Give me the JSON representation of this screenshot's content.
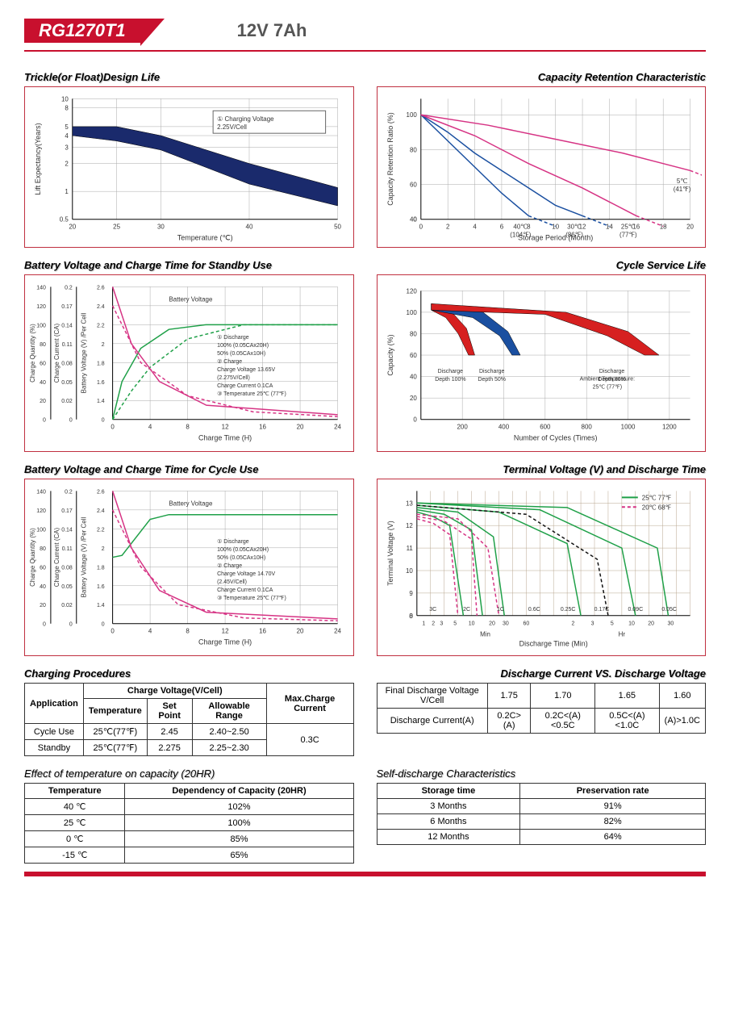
{
  "header": {
    "model": "RG1270T1",
    "spec": "12V  7Ah"
  },
  "colors": {
    "brand_red": "#c8102e",
    "chart_border": "#c03040",
    "grid": "#aaaaaa",
    "navy": "#1a2a6c",
    "magenta": "#d63384",
    "green": "#1fa048",
    "blue": "#1a4fa0",
    "red": "#d62020",
    "black": "#111111",
    "taupe_grid": "#b8a68f"
  },
  "chart_trickle": {
    "title": "Trickle(or Float)Design Life",
    "xlabel": "Temperature (℃)",
    "ylabel": "Lift Expectancy(Years)",
    "x_ticks": [
      20,
      25,
      30,
      40,
      50
    ],
    "y_ticks": [
      0.5,
      1,
      2,
      3,
      4,
      5,
      8,
      10
    ],
    "legend": "① Charging Voltage 2.25V/Cell",
    "band_upper": [
      [
        20,
        5
      ],
      [
        25,
        5
      ],
      [
        30,
        4
      ],
      [
        40,
        2
      ],
      [
        50,
        1.1
      ]
    ],
    "band_lower": [
      [
        20,
        4
      ],
      [
        25,
        3.5
      ],
      [
        30,
        2.8
      ],
      [
        40,
        1.2
      ],
      [
        50,
        0.7
      ]
    ],
    "band_color": "#1a2a6c"
  },
  "chart_capacity": {
    "title": "Capacity Retention Characteristic",
    "xlabel": "Storage Period (Month)",
    "ylabel": "Capacity Retention Ratio (%)",
    "x_ticks": [
      0,
      2,
      4,
      6,
      8,
      10,
      12,
      14,
      16,
      18,
      20
    ],
    "y_ticks": [
      0,
      40,
      60,
      80,
      100
    ],
    "series": [
      {
        "label": "40℃ (104℉)",
        "color": "#1a4fa0",
        "pts": [
          [
            0,
            100
          ],
          [
            2,
            85
          ],
          [
            4,
            70
          ],
          [
            6,
            55
          ],
          [
            8,
            42
          ]
        ],
        "dash": false
      },
      {
        "label": "30℃ (86℉)",
        "color": "#1a4fa0",
        "pts": [
          [
            0,
            100
          ],
          [
            2,
            90
          ],
          [
            4,
            78
          ],
          [
            6,
            68
          ],
          [
            8,
            58
          ],
          [
            10,
            48
          ],
          [
            12,
            42
          ]
        ],
        "dash": false
      },
      {
        "label": "25℃ (77℉)",
        "color": "#d63384",
        "pts": [
          [
            0,
            100
          ],
          [
            4,
            88
          ],
          [
            8,
            72
          ],
          [
            12,
            58
          ],
          [
            14,
            50
          ],
          [
            16,
            42
          ]
        ],
        "dash": false
      },
      {
        "label": "5℃ (41℉)",
        "color": "#d63384",
        "pts": [
          [
            0,
            100
          ],
          [
            5,
            94
          ],
          [
            10,
            86
          ],
          [
            15,
            78
          ],
          [
            18,
            72
          ],
          [
            20,
            68
          ]
        ],
        "dash": false
      }
    ]
  },
  "chart_standby": {
    "title": "Battery Voltage and Charge Time for Standby Use",
    "xlabel": "Charge Time (H)",
    "x_ticks": [
      0,
      4,
      8,
      12,
      16,
      20,
      24
    ],
    "y1_label": "Charge Quantity (%)",
    "y1_ticks": [
      0,
      20,
      40,
      60,
      80,
      100,
      120,
      140
    ],
    "y2_label": "Charge Current (CA)",
    "y2_ticks": [
      0,
      0.02,
      0.05,
      0.08,
      0.11,
      0.14,
      0.17,
      0.2
    ],
    "y3_label": "Battery Voltage (V) /Per Cell",
    "y3_ticks": [
      0,
      1.4,
      1.6,
      1.8,
      2.0,
      2.2,
      2.4,
      2.6
    ],
    "note_lines": [
      "① Discharge",
      "   100% (0.05CAx20H)",
      "   50% (0.05CAx10H)",
      "② Charge",
      "   Charge Voltage 13.65V",
      "   (2.275V/Cell)",
      "   Charge Current 0.1CA",
      "③ Temperature 25℃ (77℉)"
    ],
    "curves": [
      {
        "color": "#1fa048",
        "dash": false,
        "pts": [
          [
            0,
            0
          ],
          [
            1,
            40
          ],
          [
            3,
            75
          ],
          [
            6,
            95
          ],
          [
            10,
            100
          ],
          [
            24,
            100
          ]
        ],
        "label": "Battery Voltage"
      },
      {
        "color": "#1fa048",
        "dash": true,
        "pts": [
          [
            0,
            0
          ],
          [
            2,
            30
          ],
          [
            4,
            55
          ],
          [
            8,
            85
          ],
          [
            14,
            100
          ],
          [
            24,
            100
          ]
        ]
      },
      {
        "color": "#d63384",
        "dash": false,
        "pts": [
          [
            0,
            140
          ],
          [
            2,
            80
          ],
          [
            5,
            40
          ],
          [
            10,
            15
          ],
          [
            24,
            5
          ]
        ],
        "label": "Charge Current"
      },
      {
        "color": "#d63384",
        "dash": true,
        "pts": [
          [
            0,
            120
          ],
          [
            3,
            60
          ],
          [
            8,
            25
          ],
          [
            15,
            8
          ],
          [
            24,
            3
          ]
        ]
      }
    ]
  },
  "chart_cycle_life": {
    "title": "Cycle Service Life",
    "xlabel": "Number of Cycles (Times)",
    "ylabel": "Capacity (%)",
    "x_ticks": [
      200,
      400,
      600,
      800,
      1000,
      1200
    ],
    "y_ticks": [
      0,
      20,
      40,
      60,
      80,
      100,
      120
    ],
    "ambient": "Ambient Temperature: 25℃ (77℉)",
    "bands": [
      {
        "label": "Discharge Depth 100%",
        "color": "#d62020",
        "u": [
          [
            50,
            108
          ],
          [
            150,
            100
          ],
          [
            220,
            85
          ],
          [
            260,
            60
          ]
        ],
        "l": [
          [
            50,
            102
          ],
          [
            120,
            95
          ],
          [
            180,
            80
          ],
          [
            230,
            60
          ]
        ]
      },
      {
        "label": "Discharge Depth 50%",
        "color": "#1a4fa0",
        "u": [
          [
            50,
            108
          ],
          [
            300,
            100
          ],
          [
            420,
            82
          ],
          [
            480,
            60
          ]
        ],
        "l": [
          [
            50,
            102
          ],
          [
            250,
            95
          ],
          [
            380,
            78
          ],
          [
            440,
            60
          ]
        ]
      },
      {
        "label": "Discharge Depth 30%",
        "color": "#d62020",
        "u": [
          [
            50,
            108
          ],
          [
            700,
            100
          ],
          [
            1000,
            82
          ],
          [
            1150,
            60
          ]
        ],
        "l": [
          [
            50,
            102
          ],
          [
            600,
            98
          ],
          [
            900,
            78
          ],
          [
            1080,
            60
          ]
        ]
      }
    ]
  },
  "chart_cycle": {
    "title": "Battery Voltage and Charge Time for Cycle Use",
    "xlabel": "Charge Time (H)",
    "x_ticks": [
      0,
      4,
      8,
      12,
      16,
      20,
      24
    ],
    "note_lines": [
      "① Discharge",
      "   100% (0.05CAx20H)",
      "   50% (0.05CAx10H)",
      "② Charge",
      "   Charge Voltage 14.70V",
      "   (2.45V/Cell)",
      "   Charge Current 0.1CA",
      "③ Temperature 25℃ (77℉)"
    ],
    "curves": [
      {
        "color": "#1fa048",
        "dash": false,
        "pts": [
          [
            0,
            70
          ],
          [
            1,
            72
          ],
          [
            4,
            110
          ],
          [
            6,
            115
          ],
          [
            24,
            115
          ]
        ],
        "label": "Battery Voltage"
      },
      {
        "color": "#d63384",
        "dash": false,
        "pts": [
          [
            0,
            140
          ],
          [
            2,
            80
          ],
          [
            5,
            35
          ],
          [
            10,
            12
          ],
          [
            24,
            5
          ]
        ],
        "label": "Charge Current"
      },
      {
        "color": "#d63384",
        "dash": true,
        "pts": [
          [
            0,
            120
          ],
          [
            3,
            60
          ],
          [
            7,
            20
          ],
          [
            14,
            6
          ],
          [
            24,
            3
          ]
        ]
      }
    ]
  },
  "chart_discharge": {
    "title": "Terminal Voltage (V) and Discharge Time",
    "xlabel": "Discharge Time (Min)",
    "ylabel": "Terminal Voltage (V)",
    "y_ticks": [
      0,
      8,
      9,
      10,
      11,
      12,
      13
    ],
    "x_labels_min": [
      "1",
      "2",
      "3",
      "5",
      "10",
      "20",
      "30",
      "60"
    ],
    "x_labels_hr": [
      "2",
      "3",
      "5",
      "10",
      "20",
      "30"
    ],
    "legend": [
      {
        "label": "25℃ 77℉",
        "color": "#1fa048"
      },
      {
        "label": "20℃ 68℉",
        "color": "#d63384"
      }
    ],
    "c_labels": [
      "3C",
      "2C",
      "1C",
      "0.6C",
      "0.25C",
      "0.17C",
      "0.09C",
      "0.05C"
    ],
    "series": [
      {
        "color": "#1fa048",
        "pts": [
          [
            0,
            12.6
          ],
          [
            6,
            12.4
          ],
          [
            12,
            12.0
          ],
          [
            17,
            8
          ]
        ]
      },
      {
        "color": "#1fa048",
        "pts": [
          [
            0,
            12.7
          ],
          [
            10,
            12.5
          ],
          [
            20,
            11.8
          ],
          [
            24,
            8
          ]
        ]
      },
      {
        "color": "#1fa048",
        "pts": [
          [
            0,
            12.8
          ],
          [
            15,
            12.6
          ],
          [
            28,
            11.5
          ],
          [
            32,
            8
          ]
        ]
      },
      {
        "color": "#1fa048",
        "pts": [
          [
            0,
            12.9
          ],
          [
            30,
            12.6
          ],
          [
            55,
            11.2
          ],
          [
            60,
            8
          ]
        ]
      },
      {
        "color": "#1fa048",
        "pts": [
          [
            0,
            13.0
          ],
          [
            45,
            12.7
          ],
          [
            75,
            11.0
          ],
          [
            80,
            8
          ]
        ]
      },
      {
        "color": "#1fa048",
        "pts": [
          [
            0,
            13.0
          ],
          [
            55,
            12.8
          ],
          [
            88,
            11
          ],
          [
            92,
            8
          ]
        ]
      },
      {
        "color": "#d63384",
        "dash": true,
        "pts": [
          [
            0,
            12.3
          ],
          [
            6,
            12.1
          ],
          [
            12,
            11.6
          ],
          [
            15,
            8
          ]
        ]
      },
      {
        "color": "#d63384",
        "dash": true,
        "pts": [
          [
            0,
            12.4
          ],
          [
            10,
            12.2
          ],
          [
            20,
            11.4
          ],
          [
            22,
            8
          ]
        ]
      },
      {
        "color": "#d63384",
        "dash": true,
        "pts": [
          [
            0,
            12.5
          ],
          [
            15,
            12.3
          ],
          [
            26,
            11.0
          ],
          [
            30,
            8
          ]
        ]
      },
      {
        "color": "#111",
        "dash": true,
        "pts": [
          [
            0,
            12.9
          ],
          [
            40,
            12.5
          ],
          [
            66,
            10.5
          ],
          [
            70,
            8
          ]
        ]
      }
    ]
  },
  "table_charging": {
    "title": "Charging Procedures",
    "headers": {
      "app": "Application",
      "cv": "Charge Voltage(V/Cell)",
      "temp": "Temperature",
      "sp": "Set Point",
      "range": "Allowable Range",
      "max": "Max.Charge Current"
    },
    "rows": [
      {
        "app": "Cycle Use",
        "temp": "25℃(77℉)",
        "sp": "2.45",
        "range": "2.40~2.50"
      },
      {
        "app": "Standby",
        "temp": "25℃(77℉)",
        "sp": "2.275",
        "range": "2.25~2.30"
      }
    ],
    "max": "0.3C"
  },
  "table_discharge": {
    "title": "Discharge Current VS. Discharge Voltage",
    "h1": "Final Discharge Voltage V/Cell",
    "h2": "Discharge Current(A)",
    "cols": [
      "1.75",
      "1.70",
      "1.65",
      "1.60"
    ],
    "vals": [
      "0.2C>(A)",
      "0.2C<(A)<0.5C",
      "0.5C<(A)<1.0C",
      "(A)>1.0C"
    ]
  },
  "table_temp": {
    "title": "Effect of temperature on capacity (20HR)",
    "h1": "Temperature",
    "h2": "Dependency of Capacity (20HR)",
    "rows": [
      [
        "40 ℃",
        "102%"
      ],
      [
        "25 ℃",
        "100%"
      ],
      [
        "0 ℃",
        "85%"
      ],
      [
        "-15 ℃",
        "65%"
      ]
    ]
  },
  "table_self": {
    "title": "Self-discharge Characteristics",
    "h1": "Storage time",
    "h2": "Preservation rate",
    "rows": [
      [
        "3 Months",
        "91%"
      ],
      [
        "6 Months",
        "82%"
      ],
      [
        "12 Months",
        "64%"
      ]
    ]
  }
}
